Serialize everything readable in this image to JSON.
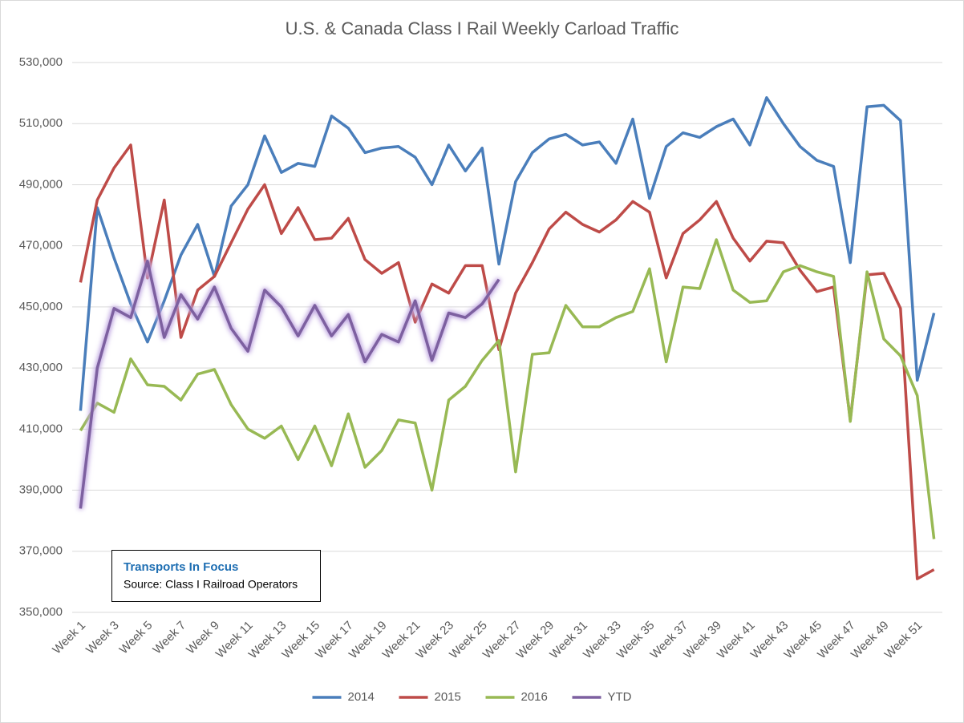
{
  "chart_data": {
    "type": "line",
    "title": "U.S. & Canada Class I Rail Weekly Carload Traffic",
    "annotation": {
      "title": "Transports  In Focus",
      "source": "Source: Class I Railroad Operators"
    },
    "categories": [
      "Week 1",
      null,
      "Week 3",
      null,
      "Week 5",
      null,
      "Week 7",
      null,
      "Week 9",
      null,
      "Week 11",
      null,
      "Week 13",
      null,
      "Week 15",
      null,
      "Week 17",
      null,
      "Week 19",
      null,
      "Week 21",
      null,
      "Week 23",
      null,
      "Week 25",
      null,
      "Week 27",
      null,
      "Week 29",
      null,
      "Week 31",
      null,
      "Week 33",
      null,
      "Week 35",
      null,
      "Week 37",
      null,
      "Week 39",
      null,
      "Week 41",
      null,
      "Week 43",
      null,
      "Week 45",
      null,
      "Week 47",
      null,
      "Week 49",
      null,
      "Week 51",
      null
    ],
    "ylim": [
      350000,
      530000
    ],
    "yticks": [
      {
        "value": 350000,
        "label": "350,000"
      },
      {
        "value": 370000,
        "label": "370,000"
      },
      {
        "value": 390000,
        "label": "390,000"
      },
      {
        "value": 410000,
        "label": "410,000"
      },
      {
        "value": 430000,
        "label": "430,000"
      },
      {
        "value": 450000,
        "label": "450,000"
      },
      {
        "value": 470000,
        "label": "470,000"
      },
      {
        "value": 490000,
        "label": "490,000"
      },
      {
        "value": 510000,
        "label": "510,000"
      },
      {
        "value": 530000,
        "label": "530,000"
      }
    ],
    "grid": true,
    "legend": "bottom",
    "series": [
      {
        "name": "2014",
        "color": "#4a7ebb",
        "values": [
          416000,
          482500,
          466000,
          451000,
          438500,
          452000,
          467000,
          477000,
          460000,
          483000,
          490000,
          506000,
          494000,
          497000,
          496000,
          512500,
          508500,
          500500,
          502000,
          502500,
          499000,
          490000,
          503000,
          494500,
          502000,
          464000,
          491000,
          500500,
          505000,
          506500,
          503000,
          504000,
          497000,
          511500,
          485500,
          502500,
          507000,
          505500,
          509000,
          511500,
          503000,
          518500,
          510000,
          502500,
          498000,
          496000,
          464500,
          515500,
          516000,
          511000,
          426000,
          448000
        ]
      },
      {
        "name": "2015",
        "color": "#be4b48",
        "values": [
          458000,
          485000,
          495500,
          503000,
          459500,
          485000,
          440000,
          455500,
          460000,
          471000,
          482000,
          490000,
          474000,
          482500,
          472000,
          472500,
          479000,
          465500,
          461000,
          464500,
          445000,
          457500,
          454500,
          463500,
          463500,
          436000,
          454500,
          464500,
          475500,
          481000,
          477000,
          474500,
          478500,
          484500,
          481000,
          459500,
          474000,
          478500,
          484500,
          472500,
          465000,
          471500,
          471000,
          462000,
          455000,
          456500,
          413000,
          460500,
          461000,
          449500,
          361000,
          364000
        ]
      },
      {
        "name": "2016",
        "color": "#98b954",
        "values": [
          409500,
          418500,
          415500,
          433000,
          424500,
          424000,
          419500,
          428000,
          429500,
          418000,
          410000,
          407000,
          411000,
          400000,
          411000,
          398000,
          415000,
          397500,
          403000,
          413000,
          412000,
          390000,
          419500,
          424000,
          432500,
          439000,
          396000,
          434500,
          435000,
          450500,
          443500,
          443500,
          446500,
          448500,
          462500,
          432000,
          456500,
          456000,
          472000,
          455500,
          451500,
          452000,
          461500,
          463500,
          461500,
          460000,
          412500,
          461500,
          439500,
          434000,
          421000,
          374000
        ]
      },
      {
        "name": "YTD",
        "color": "#7d60a0",
        "values": [
          384000,
          430000,
          449500,
          446500,
          465000,
          440000,
          454000,
          446000,
          456500,
          443000,
          435500,
          455500,
          450000,
          440500,
          450500,
          440500,
          447500,
          432000,
          441000,
          438500,
          452000,
          432500,
          448000,
          446500,
          451000,
          459000,
          null,
          null,
          null,
          null,
          null,
          null,
          null,
          null,
          null,
          null,
          null,
          null,
          null,
          null,
          null,
          null,
          null,
          null,
          null,
          null,
          null,
          null,
          null,
          null,
          null,
          null
        ]
      }
    ]
  }
}
